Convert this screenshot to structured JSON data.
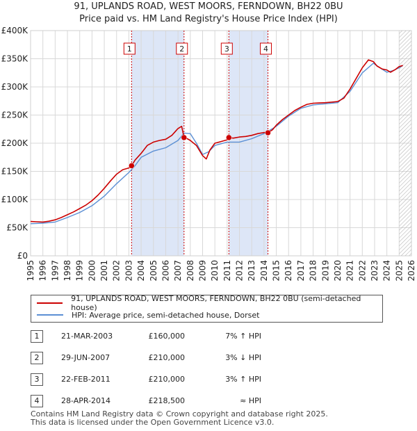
{
  "title_line1": "91, UPLANDS ROAD, WEST MOORS, FERNDOWN, BH22 0BU",
  "title_line2": "Price paid vs. HM Land Registry's House Price Index (HPI)",
  "legend": {
    "property_label": "91, UPLANDS ROAD, WEST MOORS, FERNDOWN, BH22 0BU (semi-detached house)",
    "hpi_label": "HPI: Average price, semi-detached house, Dorset"
  },
  "colors": {
    "property": "#cc0000",
    "hpi": "#5b8fd4",
    "band": "#dde6f7",
    "grid": "#d8d8d8",
    "marker_line": "#cc0000"
  },
  "sales": [
    {
      "num": "1",
      "date": "21-MAR-2003",
      "price": "£160,000",
      "rel": "7% ↑ HPI"
    },
    {
      "num": "2",
      "date": "29-JUN-2007",
      "price": "£210,000",
      "rel": "3% ↓ HPI"
    },
    {
      "num": "3",
      "date": "22-FEB-2011",
      "price": "£210,000",
      "rel": "3% ↑ HPI"
    },
    {
      "num": "4",
      "date": "28-APR-2014",
      "price": "£218,500",
      "rel": "≈ HPI"
    }
  ],
  "footer_line1": "Contains HM Land Registry data © Crown copyright and database right 2025.",
  "footer_line2": "This data is licensed under the Open Government Licence v3.0.",
  "chart_data": {
    "type": "line",
    "title": "91, UPLANDS ROAD, WEST MOORS, FERNDOWN, BH22 0BU",
    "subtitle": "Price paid vs. HM Land Registry's House Price Index (HPI)",
    "xlim": [
      1995,
      2026
    ],
    "ylim": [
      0,
      400000
    ],
    "x_ticks": [
      "1995",
      "1996",
      "1997",
      "1998",
      "1999",
      "2000",
      "2001",
      "2002",
      "2003",
      "2004",
      "2005",
      "2006",
      "2007",
      "2008",
      "2009",
      "2010",
      "2011",
      "2012",
      "2013",
      "2014",
      "2015",
      "2016",
      "2017",
      "2018",
      "2019",
      "2020",
      "2021",
      "2022",
      "2023",
      "2024",
      "2025",
      "2026"
    ],
    "y_ticks": [
      {
        "value": 0,
        "label": "£0"
      },
      {
        "value": 50000,
        "label": "£50K"
      },
      {
        "value": 100000,
        "label": "£100K"
      },
      {
        "value": 150000,
        "label": "£150K"
      },
      {
        "value": 200000,
        "label": "£200K"
      },
      {
        "value": 250000,
        "label": "£250K"
      },
      {
        "value": 300000,
        "label": "£300K"
      },
      {
        "value": 350000,
        "label": "£350K"
      },
      {
        "value": 400000,
        "label": "£400K"
      }
    ],
    "grid": true,
    "shaded_periods": [
      [
        2003.22,
        2007.49
      ],
      [
        2011.14,
        2014.32
      ]
    ],
    "future_hatch_from": 2025.0,
    "sale_markers": [
      {
        "label": "1",
        "x": 2003.22,
        "y": 160000
      },
      {
        "label": "2",
        "x": 2007.49,
        "y": 210000
      },
      {
        "label": "3",
        "x": 2011.14,
        "y": 210000
      },
      {
        "label": "4",
        "x": 2014.32,
        "y": 218500
      }
    ],
    "series": [
      {
        "name": "91, UPLANDS ROAD, WEST MOORS, FERNDOWN, BH22 0BU (semi-detached house)",
        "x": [
          1995,
          1995.5,
          1996,
          1996.5,
          1997,
          1997.5,
          1998,
          1998.5,
          1999,
          1999.5,
          2000,
          2000.5,
          2001,
          2001.5,
          2002,
          2002.5,
          2003,
          2003.22,
          2003.5,
          2004,
          2004.5,
          2005,
          2005.5,
          2006,
          2006.5,
          2007,
          2007.3,
          2007.49,
          2007.75,
          2008,
          2008.5,
          2009,
          2009.3,
          2009.6,
          2010,
          2010.5,
          2011,
          2011.14,
          2011.5,
          2012,
          2012.5,
          2013,
          2013.5,
          2014,
          2014.32,
          2014.7,
          2015,
          2015.5,
          2016,
          2016.5,
          2017,
          2017.5,
          2018,
          2018.5,
          2019,
          2019.5,
          2020,
          2020.5,
          2021,
          2021.5,
          2022,
          2022.5,
          2022.9,
          2023.2,
          2023.6,
          2024,
          2024.3,
          2024.7,
          2025,
          2025.3
        ],
        "y": [
          61000,
          60500,
          60000,
          61500,
          64000,
          68000,
          73000,
          78000,
          84000,
          90000,
          98000,
          108000,
          120000,
          133000,
          145000,
          153000,
          156000,
          160000,
          170000,
          182000,
          196000,
          202000,
          205000,
          207000,
          214000,
          226000,
          230000,
          210000,
          208000,
          205000,
          196000,
          178000,
          172000,
          188000,
          200000,
          203000,
          206000,
          210000,
          209000,
          211000,
          212000,
          214000,
          217000,
          219000,
          218500,
          224000,
          232000,
          242000,
          250000,
          258000,
          264000,
          269000,
          271000,
          271500,
          272000,
          273000,
          274000,
          280000,
          296000,
          315000,
          334000,
          348000,
          345000,
          337000,
          332000,
          330000,
          326000,
          331000,
          336000,
          338000
        ]
      },
      {
        "name": "HPI: Average price, semi-detached house, Dorset",
        "x": [
          1995,
          1996,
          1997,
          1998,
          1999,
          2000,
          2001,
          2002,
          2003,
          2003.5,
          2004,
          2005,
          2006,
          2007,
          2007.5,
          2008,
          2008.5,
          2009,
          2009.5,
          2010,
          2011,
          2012,
          2013,
          2014,
          2015,
          2016,
          2017,
          2018,
          2019,
          2020,
          2021,
          2022,
          2022.9,
          2023.5,
          2024,
          2024.5,
          2025,
          2025.3
        ],
        "y": [
          57000,
          58000,
          60000,
          68000,
          77000,
          89000,
          106000,
          128000,
          148000,
          160000,
          175000,
          186000,
          192000,
          205000,
          218000,
          217000,
          200000,
          180000,
          185000,
          196000,
          202000,
          202000,
          208000,
          217000,
          230000,
          248000,
          262000,
          268000,
          270000,
          272000,
          292000,
          325000,
          342000,
          333000,
          326000,
          329000,
          334000,
          338000
        ]
      }
    ]
  }
}
